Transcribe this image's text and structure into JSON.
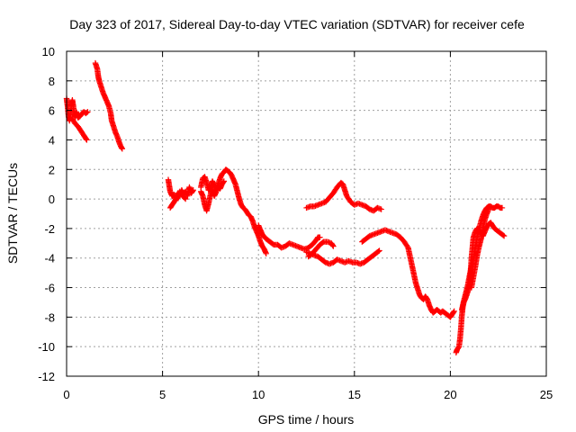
{
  "chart_data": {
    "type": "scatter",
    "title": "Day 323 of 2017, Sidereal Day-to-day VTEC variation (SDTVAR) for receiver cefe",
    "xlabel": "GPS time / hours",
    "ylabel": "SDTVAR / TECUs",
    "xlim": [
      0,
      25
    ],
    "ylim": [
      -12,
      10
    ],
    "xticks": [
      0,
      5,
      10,
      15,
      20,
      25
    ],
    "yticks": [
      -12,
      -10,
      -8,
      -6,
      -4,
      -2,
      0,
      2,
      4,
      6,
      8,
      10
    ],
    "grid": true,
    "marker": "+",
    "series": [
      {
        "name": "SDTVAR",
        "color": "#ff0000",
        "segments": [
          [
            [
              0.0,
              6.8
            ],
            [
              0.05,
              6.3
            ],
            [
              0.1,
              5.6
            ],
            [
              0.15,
              5.3
            ],
            [
              0.2,
              5.6
            ],
            [
              0.25,
              6.4
            ],
            [
              0.3,
              6.7
            ],
            [
              0.35,
              6.3
            ],
            [
              0.4,
              5.8
            ],
            [
              0.45,
              5.5
            ],
            [
              0.5,
              5.9
            ],
            [
              0.55,
              5.7
            ],
            [
              0.6,
              5.5
            ],
            [
              0.7,
              5.6
            ],
            [
              0.8,
              5.8
            ],
            [
              0.9,
              5.9
            ],
            [
              1.0,
              5.8
            ],
            [
              1.1,
              5.9
            ]
          ],
          [
            [
              0.3,
              5.4
            ],
            [
              0.45,
              5.1
            ],
            [
              0.6,
              4.9
            ],
            [
              0.75,
              4.6
            ],
            [
              0.9,
              4.3
            ],
            [
              1.0,
              4.1
            ],
            [
              1.05,
              4.0
            ]
          ],
          [
            [
              1.5,
              9.2
            ],
            [
              1.6,
              8.8
            ],
            [
              1.65,
              8.3
            ],
            [
              1.7,
              8.0
            ],
            [
              1.8,
              7.6
            ],
            [
              1.9,
              7.2
            ],
            [
              2.0,
              6.9
            ],
            [
              2.1,
              6.6
            ],
            [
              2.2,
              6.3
            ],
            [
              2.3,
              5.8
            ],
            [
              2.35,
              5.3
            ],
            [
              2.45,
              4.9
            ],
            [
              2.55,
              4.5
            ],
            [
              2.65,
              4.2
            ],
            [
              2.75,
              3.8
            ],
            [
              2.85,
              3.5
            ],
            [
              2.9,
              3.4
            ]
          ],
          [
            [
              5.3,
              1.3
            ],
            [
              5.35,
              0.9
            ],
            [
              5.4,
              0.5
            ],
            [
              5.5,
              0.2
            ],
            [
              5.6,
              0.3
            ],
            [
              5.7,
              -0.1
            ],
            [
              5.8,
              0.4
            ],
            [
              5.9,
              0.2
            ],
            [
              6.0,
              0.6
            ],
            [
              6.1,
              0.3
            ],
            [
              6.2,
              0.5
            ],
            [
              6.3,
              0.2
            ],
            [
              6.4,
              0.8
            ],
            [
              6.5,
              0.4
            ],
            [
              6.6,
              0.6
            ]
          ],
          [
            [
              5.4,
              -0.6
            ],
            [
              5.5,
              -0.4
            ],
            [
              5.6,
              -0.2
            ],
            [
              5.75,
              0.1
            ],
            [
              5.9,
              0.5
            ],
            [
              6.05,
              0.2
            ],
            [
              6.2,
              0.0
            ]
          ],
          [
            [
              7.0,
              0.8
            ],
            [
              7.1,
              1.4
            ],
            [
              7.2,
              1.5
            ],
            [
              7.3,
              1.1
            ],
            [
              7.4,
              0.6
            ],
            [
              7.5,
              0.8
            ],
            [
              7.6,
              1.2
            ],
            [
              7.7,
              0.9
            ],
            [
              7.8,
              0.6
            ],
            [
              7.9,
              1.0
            ],
            [
              8.0,
              1.4
            ],
            [
              8.1,
              1.7
            ],
            [
              8.2,
              1.8
            ],
            [
              8.3,
              2.0
            ],
            [
              8.4,
              1.9
            ],
            [
              8.5,
              1.8
            ],
            [
              8.6,
              1.6
            ],
            [
              8.7,
              1.3
            ],
            [
              8.8,
              1.0
            ],
            [
              8.9,
              0.5
            ],
            [
              9.0,
              0.0
            ],
            [
              9.1,
              -0.4
            ],
            [
              9.2,
              -0.6
            ],
            [
              9.3,
              -0.7
            ],
            [
              9.4,
              -0.9
            ],
            [
              9.5,
              -1.1
            ],
            [
              9.6,
              -1.2
            ],
            [
              9.7,
              -1.5
            ],
            [
              9.8,
              -1.9
            ],
            [
              9.9,
              -2.2
            ],
            [
              10.0,
              -2.5
            ],
            [
              10.1,
              -2.9
            ],
            [
              10.2,
              -3.2
            ],
            [
              10.3,
              -3.4
            ],
            [
              10.4,
              -3.7
            ]
          ],
          [
            [
              7.0,
              0.5
            ],
            [
              7.1,
              0.2
            ],
            [
              7.2,
              -0.4
            ],
            [
              7.3,
              -0.8
            ],
            [
              7.4,
              -0.3
            ],
            [
              7.5,
              0.3
            ],
            [
              7.6,
              0.6
            ],
            [
              7.7,
              0.2
            ],
            [
              7.8,
              0.5
            ],
            [
              7.9,
              0.9
            ],
            [
              8.0,
              0.7
            ],
            [
              8.1,
              1.0
            ],
            [
              8.2,
              1.2
            ]
          ],
          [
            [
              10.0,
              -1.8
            ],
            [
              10.1,
              -2.1
            ],
            [
              10.2,
              -2.4
            ],
            [
              10.4,
              -2.7
            ],
            [
              10.6,
              -2.9
            ],
            [
              10.8,
              -3.1
            ],
            [
              11.0,
              -3.1
            ],
            [
              11.2,
              -3.3
            ],
            [
              11.4,
              -3.2
            ],
            [
              11.6,
              -3.0
            ],
            [
              11.8,
              -3.1
            ],
            [
              12.0,
              -3.2
            ],
            [
              12.2,
              -3.3
            ],
            [
              12.4,
              -3.4
            ],
            [
              12.6,
              -3.3
            ],
            [
              12.8,
              -3.1
            ],
            [
              13.0,
              -2.8
            ],
            [
              13.1,
              -2.6
            ],
            [
              13.2,
              -2.6
            ]
          ],
          [
            [
              12.5,
              -0.6
            ],
            [
              12.7,
              -0.5
            ],
            [
              12.9,
              -0.5
            ],
            [
              13.1,
              -0.4
            ],
            [
              13.3,
              -0.3
            ],
            [
              13.5,
              -0.2
            ],
            [
              13.7,
              0.1
            ],
            [
              13.9,
              0.4
            ],
            [
              14.1,
              0.8
            ],
            [
              14.3,
              1.1
            ],
            [
              14.4,
              1.0
            ],
            [
              14.5,
              0.6
            ],
            [
              14.6,
              0.2
            ],
            [
              14.8,
              -0.2
            ],
            [
              15.0,
              -0.4
            ],
            [
              15.2,
              -0.3
            ],
            [
              15.4,
              -0.4
            ],
            [
              15.6,
              -0.5
            ],
            [
              15.8,
              -0.7
            ],
            [
              16.0,
              -0.8
            ],
            [
              16.2,
              -0.6
            ],
            [
              16.4,
              -0.7
            ]
          ],
          [
            [
              12.5,
              -3.6
            ],
            [
              12.7,
              -3.7
            ],
            [
              12.9,
              -3.8
            ],
            [
              13.1,
              -3.9
            ],
            [
              13.3,
              -4.1
            ],
            [
              13.5,
              -4.3
            ],
            [
              13.7,
              -4.4
            ],
            [
              13.9,
              -4.3
            ],
            [
              14.1,
              -4.1
            ],
            [
              14.3,
              -4.2
            ],
            [
              14.5,
              -4.3
            ],
            [
              14.7,
              -4.2
            ],
            [
              14.9,
              -4.3
            ],
            [
              15.1,
              -4.3
            ],
            [
              15.3,
              -4.4
            ],
            [
              15.5,
              -4.3
            ],
            [
              15.7,
              -4.1
            ],
            [
              15.9,
              -3.9
            ],
            [
              16.1,
              -3.7
            ],
            [
              16.3,
              -3.5
            ]
          ],
          [
            [
              12.6,
              -3.9
            ],
            [
              12.8,
              -3.7
            ],
            [
              13.0,
              -3.4
            ],
            [
              13.2,
              -3.1
            ],
            [
              13.4,
              -2.9
            ],
            [
              13.6,
              -2.9
            ],
            [
              13.8,
              -3.0
            ],
            [
              13.9,
              -3.2
            ]
          ],
          [
            [
              15.4,
              -2.9
            ],
            [
              15.6,
              -2.7
            ],
            [
              15.8,
              -2.5
            ],
            [
              16.0,
              -2.4
            ],
            [
              16.2,
              -2.3
            ],
            [
              16.4,
              -2.2
            ],
            [
              16.6,
              -2.1
            ],
            [
              16.8,
              -2.2
            ],
            [
              17.0,
              -2.3
            ],
            [
              17.2,
              -2.4
            ],
            [
              17.4,
              -2.6
            ],
            [
              17.6,
              -2.9
            ],
            [
              17.8,
              -3.3
            ],
            [
              17.9,
              -3.9
            ],
            [
              18.0,
              -4.5
            ],
            [
              18.1,
              -5.1
            ],
            [
              18.2,
              -5.7
            ],
            [
              18.3,
              -6.1
            ],
            [
              18.4,
              -6.5
            ],
            [
              18.5,
              -6.7
            ],
            [
              18.6,
              -6.8
            ],
            [
              18.7,
              -6.6
            ],
            [
              18.8,
              -6.8
            ],
            [
              18.9,
              -7.2
            ],
            [
              19.0,
              -7.5
            ],
            [
              19.1,
              -7.7
            ],
            [
              19.2,
              -7.6
            ],
            [
              19.3,
              -7.5
            ],
            [
              19.4,
              -7.6
            ],
            [
              19.5,
              -7.7
            ],
            [
              19.6,
              -7.6
            ],
            [
              19.7,
              -7.7
            ],
            [
              19.8,
              -7.8
            ],
            [
              19.9,
              -7.9
            ],
            [
              20.0,
              -8.0
            ],
            [
              20.1,
              -7.8
            ],
            [
              20.2,
              -7.6
            ]
          ],
          [
            [
              20.3,
              -10.4
            ],
            [
              20.35,
              -10.2
            ],
            [
              20.45,
              -10.0
            ],
            [
              20.5,
              -9.5
            ],
            [
              20.55,
              -8.8
            ],
            [
              20.6,
              -7.9
            ],
            [
              20.65,
              -7.3
            ],
            [
              20.7,
              -7.0
            ],
            [
              20.8,
              -6.7
            ],
            [
              20.9,
              -6.3
            ],
            [
              21.0,
              -5.8
            ],
            [
              21.05,
              -5.0
            ],
            [
              21.1,
              -4.0
            ],
            [
              21.15,
              -3.3
            ],
            [
              21.2,
              -2.6
            ],
            [
              21.3,
              -2.2
            ],
            [
              21.4,
              -2.0
            ],
            [
              21.5,
              -2.1
            ],
            [
              21.6,
              -2.3
            ],
            [
              21.7,
              -2.5
            ],
            [
              21.8,
              -2.2
            ],
            [
              21.9,
              -1.9
            ],
            [
              22.0,
              -1.7
            ],
            [
              22.1,
              -1.6
            ],
            [
              22.2,
              -1.8
            ],
            [
              22.3,
              -2.0
            ],
            [
              22.4,
              -2.1
            ],
            [
              22.5,
              -2.2
            ],
            [
              22.6,
              -2.3
            ],
            [
              22.7,
              -2.4
            ],
            [
              22.8,
              -2.5
            ]
          ],
          [
            [
              20.6,
              -7.5
            ],
            [
              20.7,
              -6.9
            ],
            [
              20.8,
              -6.4
            ],
            [
              20.9,
              -5.9
            ],
            [
              21.0,
              -5.2
            ],
            [
              21.1,
              -4.6
            ],
            [
              21.2,
              -4.0
            ],
            [
              21.3,
              -3.3
            ],
            [
              21.4,
              -2.6
            ],
            [
              21.5,
              -2.0
            ],
            [
              21.6,
              -1.5
            ],
            [
              21.7,
              -1.1
            ],
            [
              21.8,
              -0.8
            ],
            [
              21.9,
              -0.6
            ],
            [
              22.0,
              -0.5
            ],
            [
              22.1,
              -0.5
            ],
            [
              22.2,
              -0.6
            ],
            [
              22.3,
              -0.6
            ],
            [
              22.4,
              -0.5
            ],
            [
              22.5,
              -0.5
            ],
            [
              22.6,
              -0.6
            ],
            [
              22.7,
              -0.6
            ]
          ],
          [
            [
              21.1,
              -6.0
            ],
            [
              21.2,
              -5.3
            ],
            [
              21.3,
              -4.6
            ],
            [
              21.4,
              -3.8
            ],
            [
              21.5,
              -3.2
            ],
            [
              21.6,
              -2.7
            ],
            [
              21.7,
              -2.0
            ],
            [
              21.8,
              -1.4
            ],
            [
              21.9,
              -1.0
            ],
            [
              22.0,
              -0.7
            ]
          ]
        ]
      }
    ]
  }
}
